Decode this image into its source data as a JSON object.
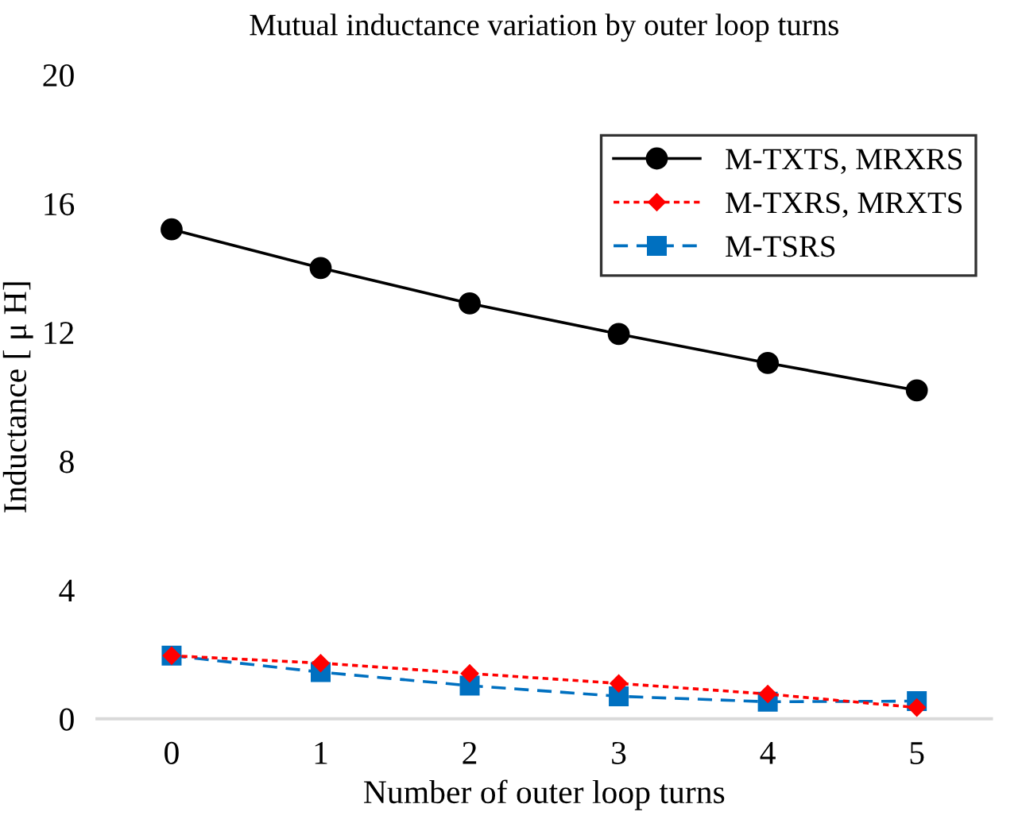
{
  "chart_data": {
    "type": "line",
    "title": "Mutual inductance variation by outer loop turns",
    "xlabel": "Number of outer loop turns",
    "ylabel": "Inductance [ μ H]",
    "categories": [
      "0",
      "1",
      "2",
      "3",
      "4",
      "5"
    ],
    "series": [
      {
        "name": "M-TXTS, MRXRS",
        "color": "#000000",
        "marker": "circle",
        "line_style": "solid",
        "values": [
          15.2,
          14.0,
          12.9,
          11.95,
          11.05,
          10.2
        ]
      },
      {
        "name": "M-TXRS, MRXTS",
        "color": "#ff0000",
        "marker": "diamond",
        "line_style": "dotted",
        "values": [
          1.96,
          1.73,
          1.41,
          1.1,
          0.77,
          0.35
        ]
      },
      {
        "name": "M-TSRS",
        "color": "#0070c0",
        "marker": "square",
        "line_style": "dashed",
        "values": [
          1.96,
          1.45,
          1.03,
          0.7,
          0.53,
          0.55
        ]
      }
    ],
    "ylim": [
      0,
      20
    ],
    "yticks": [
      0,
      4,
      8,
      12,
      16,
      20
    ],
    "grid": false,
    "legend": "top right"
  }
}
